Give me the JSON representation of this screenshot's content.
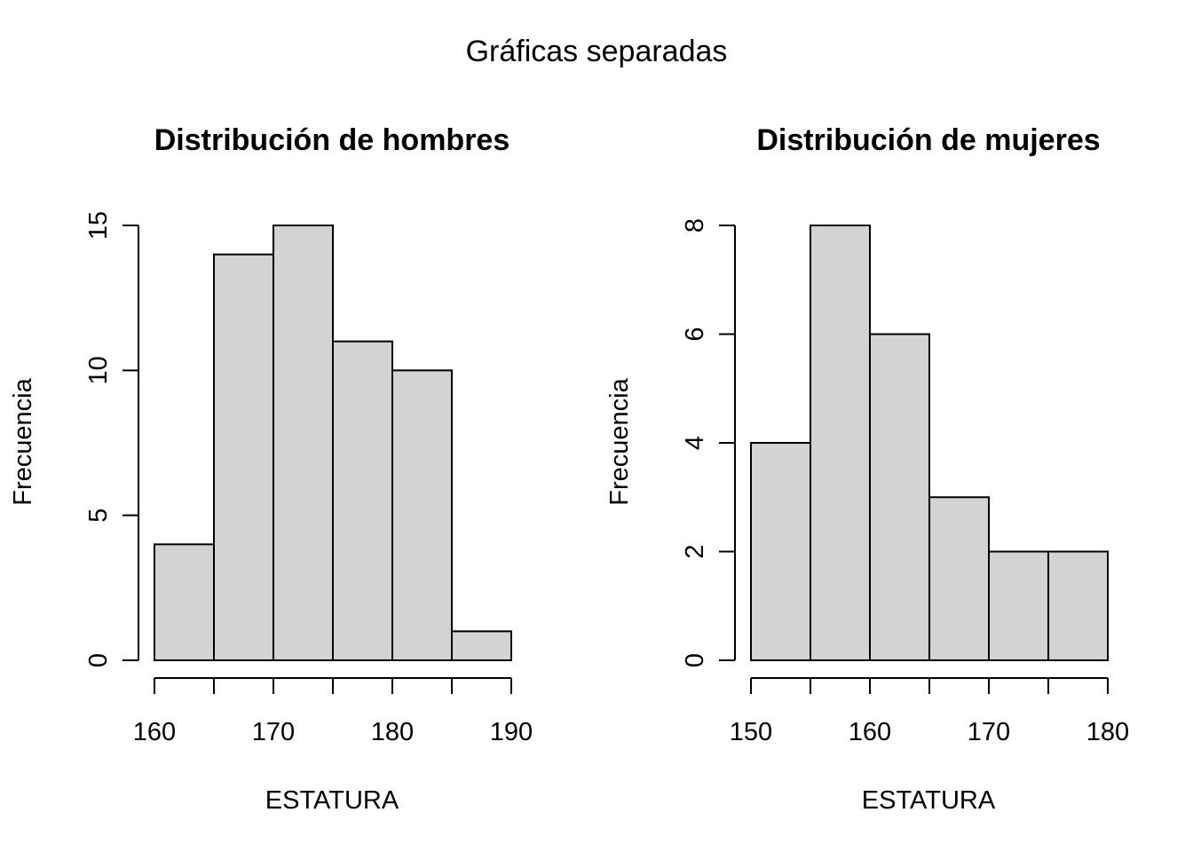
{
  "main_title": "Gráficas separadas",
  "colors": {
    "bar_fill": "#d3d3d3",
    "bar_stroke": "#000000",
    "background": "#ffffff"
  },
  "chart_data": [
    {
      "type": "bar",
      "title": "Distribución de hombres",
      "xlabel": "ESTATURA",
      "ylabel": "Frecuencia",
      "bins": [
        [
          160,
          165
        ],
        [
          165,
          170
        ],
        [
          170,
          175
        ],
        [
          175,
          180
        ],
        [
          180,
          185
        ],
        [
          185,
          190
        ]
      ],
      "values": [
        4,
        14,
        15,
        11,
        10,
        1
      ],
      "xlim": [
        160,
        190
      ],
      "ylim": [
        0,
        15
      ],
      "xticks": [
        160,
        170,
        180,
        190
      ],
      "xtick_labels": [
        "160",
        "170",
        "180",
        "190"
      ],
      "xminor_ticks": [
        160,
        165,
        170,
        175,
        180,
        185,
        190
      ],
      "yticks": [
        0,
        5,
        10,
        15
      ],
      "ytick_labels": [
        "0",
        "5",
        "10",
        "15"
      ],
      "grid": false
    },
    {
      "type": "bar",
      "title": "Distribución de mujeres",
      "xlabel": "ESTATURA",
      "ylabel": "Frecuencia",
      "bins": [
        [
          150,
          155
        ],
        [
          155,
          160
        ],
        [
          160,
          165
        ],
        [
          165,
          170
        ],
        [
          170,
          175
        ],
        [
          175,
          180
        ]
      ],
      "values": [
        4,
        8,
        6,
        3,
        2,
        2
      ],
      "xlim": [
        150,
        180
      ],
      "ylim": [
        0,
        8
      ],
      "xticks": [
        150,
        160,
        170,
        180
      ],
      "xtick_labels": [
        "150",
        "160",
        "170",
        "180"
      ],
      "xminor_ticks": [
        150,
        155,
        160,
        165,
        170,
        175,
        180
      ],
      "yticks": [
        0,
        2,
        4,
        6,
        8
      ],
      "ytick_labels": [
        "0",
        "2",
        "4",
        "6",
        "8"
      ],
      "grid": false
    }
  ]
}
